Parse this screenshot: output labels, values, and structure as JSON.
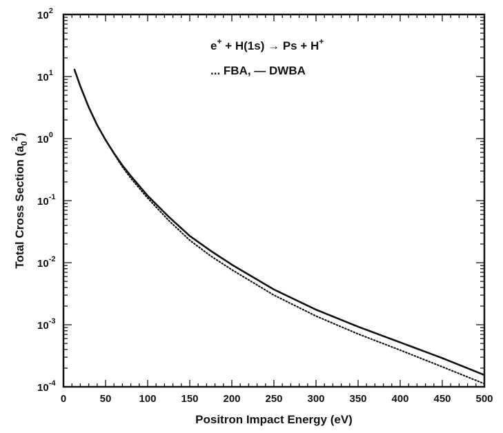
{
  "chart_data": {
    "type": "line",
    "xlabel": "Positron Impact Energy (eV)",
    "ylabel": "Total Cross Section (a",
    "ylabel_sub": "0",
    "ylabel_sup": "2",
    "ylabel_close": ")",
    "xlim": [
      0,
      500
    ],
    "ylim": [
      0.0001,
      100
    ],
    "yscale": "log",
    "x_ticks": [
      0,
      50,
      100,
      150,
      200,
      250,
      300,
      350,
      400,
      450,
      500
    ],
    "x_tick_labels": [
      "0",
      "50",
      "100",
      "150",
      "200",
      "250",
      "300",
      "350",
      "400",
      "450",
      "500"
    ],
    "y_ticks": [
      0.0001,
      0.001,
      0.01,
      0.1,
      1,
      10,
      100
    ],
    "y_tick_labels": [
      {
        "base": "10",
        "exp": "-4"
      },
      {
        "base": "10",
        "exp": "-3"
      },
      {
        "base": "10",
        "exp": "-2"
      },
      {
        "base": "10",
        "exp": "-1"
      },
      {
        "base": "10",
        "exp": "0"
      },
      {
        "base": "10",
        "exp": "1"
      },
      {
        "base": "10",
        "exp": "2"
      }
    ],
    "grid": false,
    "annotations": [
      {
        "parts": [
          "e",
          "+",
          " + H(1s) ",
          "→",
          " Ps + H",
          "+"
        ]
      },
      {
        "text": "... FBA,   — DWBA"
      }
    ],
    "series": [
      {
        "name": "DWBA",
        "style": "solid",
        "x": [
          13,
          20,
          30,
          40,
          50,
          60,
          70,
          80,
          100,
          125,
          150,
          175,
          200,
          250,
          300,
          350,
          400,
          450,
          500
        ],
        "y": [
          13,
          7,
          3.2,
          1.65,
          0.95,
          0.58,
          0.37,
          0.25,
          0.12,
          0.055,
          0.027,
          0.0155,
          0.0093,
          0.0037,
          0.00175,
          0.00093,
          0.00052,
          0.00029,
          0.000155
        ]
      },
      {
        "name": "FBA",
        "style": "dotted",
        "x": [
          13,
          20,
          30,
          40,
          50,
          60,
          70,
          80,
          100,
          125,
          150,
          175,
          200,
          250,
          300,
          350,
          400,
          450,
          500
        ],
        "y": [
          13,
          7,
          3.2,
          1.65,
          0.95,
          0.57,
          0.35,
          0.23,
          0.11,
          0.048,
          0.023,
          0.0128,
          0.0077,
          0.003,
          0.00138,
          0.00071,
          0.00039,
          0.00021,
          0.000112
        ]
      }
    ]
  }
}
